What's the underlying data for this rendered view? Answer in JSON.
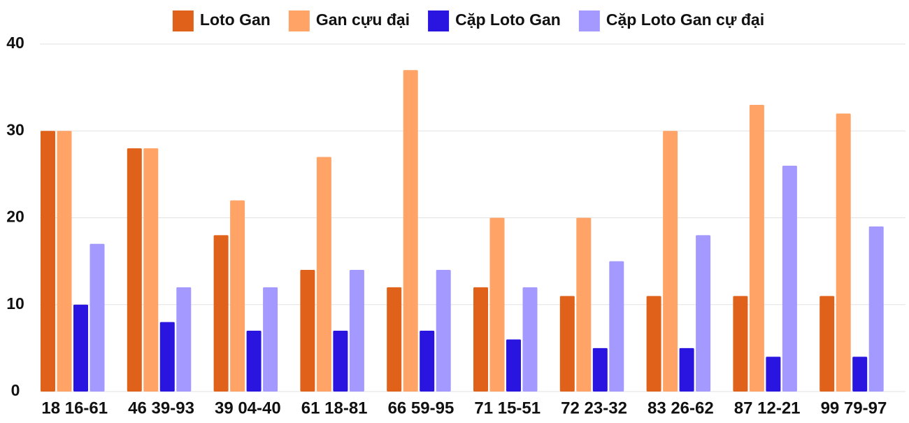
{
  "chart_data": {
    "type": "bar",
    "categories": [
      "18 16-61",
      "46 39-93",
      "39 04-40",
      "61 18-81",
      "66 59-95",
      "71 15-51",
      "72 23-32",
      "83 26-62",
      "87 12-21",
      "99 79-97"
    ],
    "series": [
      {
        "name": "Loto Gan",
        "color": "#e0621a",
        "values": [
          30,
          28,
          18,
          14,
          12,
          12,
          11,
          11,
          11,
          11
        ]
      },
      {
        "name": "Gan cựu đại",
        "color": "#ffa366",
        "values": [
          30,
          28,
          22,
          27,
          37,
          20,
          20,
          30,
          33,
          32
        ]
      },
      {
        "name": "Cặp Loto Gan",
        "color": "#2a14e0",
        "values": [
          10,
          8,
          7,
          7,
          7,
          6,
          5,
          5,
          4,
          4
        ]
      },
      {
        "name": "Cặp Loto Gan cự đại",
        "color": "#a399ff",
        "values": [
          17,
          12,
          12,
          14,
          14,
          12,
          15,
          18,
          26,
          19
        ]
      }
    ],
    "ylim": [
      0,
      40
    ],
    "yticks": [
      0,
      10,
      20,
      30,
      40
    ],
    "grid": true,
    "legend": "top"
  }
}
